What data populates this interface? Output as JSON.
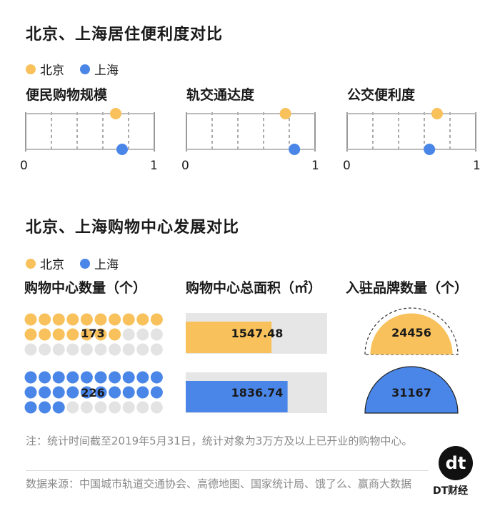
{
  "section1": {
    "title": "北京、上海居住便利度对比",
    "legend": [
      {
        "name": "北京",
        "color": "#f8c15b"
      },
      {
        "name": "上海",
        "color": "#4a86e8"
      }
    ],
    "panels": [
      {
        "title": "便民购物规模",
        "tick_min": "0",
        "tick_max": "1"
      },
      {
        "title": "轨交通达度",
        "tick_min": "0",
        "tick_max": "1"
      },
      {
        "title": "公交便利度",
        "tick_min": "0",
        "tick_max": "1"
      }
    ]
  },
  "section2": {
    "title": "北京、上海购物中心发展对比",
    "legend": [
      {
        "name": "北京",
        "color": "#f8c15b"
      },
      {
        "name": "上海",
        "color": "#4a86e8"
      }
    ],
    "col1_title": "购物中心数量（个）",
    "col2_title": "购物中心总面积（㎡）",
    "col3_title": "入驻品牌数量（个）",
    "labels": {
      "bj_count": "173",
      "sh_count": "226",
      "bj_area": "1547.48",
      "sh_area": "1836.74",
      "bj_brands": "24456",
      "sh_brands": "31167"
    }
  },
  "chart_data": [
    {
      "type": "scatter",
      "title": "便民购物规模",
      "xlim": [
        0,
        1
      ],
      "series": [
        {
          "name": "北京",
          "x": [
            0.7
          ]
        },
        {
          "name": "上海",
          "x": [
            0.75
          ]
        }
      ]
    },
    {
      "type": "scatter",
      "title": "轨交通达度",
      "xlim": [
        0,
        1
      ],
      "series": [
        {
          "name": "北京",
          "x": [
            0.77
          ]
        },
        {
          "name": "上海",
          "x": [
            0.84
          ]
        }
      ]
    },
    {
      "type": "scatter",
      "title": "公交便利度",
      "xlim": [
        0,
        1
      ],
      "series": [
        {
          "name": "北京",
          "x": [
            0.7
          ]
        },
        {
          "name": "上海",
          "x": [
            0.64
          ]
        }
      ]
    },
    {
      "type": "bar",
      "title": "购物中心数量（个）",
      "categories": [
        "北京",
        "上海"
      ],
      "values": [
        173,
        226
      ]
    },
    {
      "type": "bar",
      "title": "购物中心总面积（㎡）",
      "categories": [
        "北京",
        "上海"
      ],
      "values": [
        1547.48,
        1836.74
      ]
    },
    {
      "type": "bar",
      "title": "入驻品牌数量（个）",
      "categories": [
        "北京",
        "上海"
      ],
      "values": [
        24456,
        31167
      ]
    }
  ],
  "footer": {
    "note": "注：统计时间截至2019年5月31日，统计对象为3万方及以上已开业的购物中心。",
    "source": "数据来源：中国城市轨道交通协会、高德地图、国家统计局、饿了么、赢商大数据",
    "logo": "dt",
    "brand": "DT财经"
  }
}
